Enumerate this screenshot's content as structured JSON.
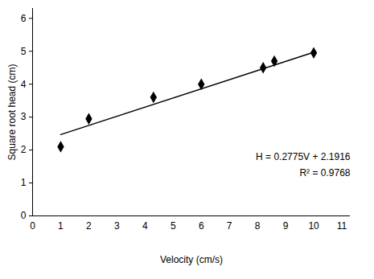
{
  "chart_data": {
    "type": "scatter",
    "x_label": "Velocity (cm/s)",
    "y_label": "Square root head (cm)",
    "x": [
      1,
      2,
      4.3,
      6,
      8.2,
      8.6,
      10
    ],
    "values": [
      2.1,
      2.95,
      3.6,
      4.0,
      4.5,
      4.7,
      4.95
    ],
    "color": "#000000",
    "marker": "diamond",
    "trendline": {
      "x": [
        1,
        10
      ],
      "values": [
        2.47,
        4.97
      ],
      "color": "#000000",
      "line_style": "solid"
    },
    "annotations": [
      "H = 0.2775V + 2.1916",
      "R² = 0.9768"
    ],
    "xlim": [
      0,
      11.3
    ],
    "ylim": [
      0,
      6.3
    ],
    "xticks": [
      0,
      1,
      2,
      3,
      4,
      5,
      6,
      7,
      8,
      9,
      10,
      11
    ],
    "yticks": [
      0,
      1,
      2,
      3,
      4,
      5,
      6
    ],
    "grid": false
  }
}
